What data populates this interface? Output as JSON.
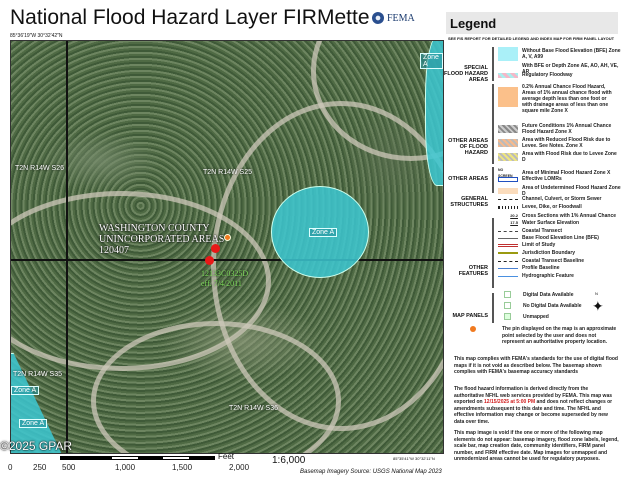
{
  "title": "National Flood Hazard Layer FIRMette",
  "agency": "FEMA",
  "coord_top_left": "85°36'19\"W 30°32'42\"N",
  "coord_bottom_right": "85°35'41\"W 30°32'11\"N",
  "map": {
    "zone_labels": [
      "Zone A",
      "Zone A",
      "Zone A",
      "Zone A"
    ],
    "township_labels": [
      "T2N R14W S26",
      "T2N R14W S25",
      "T2N R14W S35",
      "T2N R14W S36"
    ],
    "community": [
      "WASHINGTON COUNTY",
      "UNINCORPORATED AREAS",
      "120407"
    ],
    "panel": "12133C0325D",
    "panel_eff": "eff. 7/4/2011",
    "copyright": "©2025 GPAR"
  },
  "scale": {
    "unit": "Feet",
    "ticks": [
      "0",
      "250",
      "500",
      "1,000",
      "1,500",
      "2,000"
    ],
    "ratio": "1:6,000",
    "imagery_source": "Basemap Imagery Source: USGS National Map 2023"
  },
  "legend": {
    "title": "Legend",
    "note": "SEE FIS REPORT FOR DETAILED LEGEND AND INDEX MAP FOR FIRM PANEL LAYOUT",
    "sfha": {
      "label": "SPECIAL FLOOD HAZARD AREAS",
      "items": [
        "Without Base Flood Elevation (BFE) Zone A, V, A99",
        "With BFE or Depth Zone AE, AO, AH, VE, AR",
        "Regulatory Floodway"
      ]
    },
    "other_flood": {
      "label": "OTHER AREAS OF FLOOD HAZARD",
      "items": [
        "0.2% Annual Chance Flood Hazard, Areas of 1% annual chance flood with average depth less than one foot or with drainage areas of less than one square mile Zone X",
        "Future Conditions 1% Annual Chance Flood Hazard Zone X",
        "Area with Reduced Flood Risk due to Levee. See Notes. Zone X",
        "Area with Flood Risk due to Levee Zone D"
      ]
    },
    "other_areas": {
      "label": "OTHER AREAS",
      "no_screen": "NO SCREEN",
      "items": [
        "Area of Minimal Flood Hazard Zone X",
        "Effective LOMRs",
        "Area of Undetermined Flood Hazard Zone D"
      ]
    },
    "structures": {
      "label": "GENERAL STRUCTURES",
      "items": [
        "Channel, Culvert, or Storm Sewer",
        "Levee, Dike, or Floodwall"
      ]
    },
    "features": {
      "label": "OTHER FEATURES",
      "xs_values": [
        "20.2",
        "17.5"
      ],
      "items": [
        "Cross Sections with 1% Annual Chance",
        "Water Surface Elevation",
        "Coastal Transect",
        "Base Flood Elevation Line (BFE)",
        "Limit of Study",
        "Jurisdiction Boundary",
        "Coastal Transect Baseline",
        "Profile Baseline",
        "Hydrographic Feature"
      ]
    },
    "panels": {
      "label": "MAP PANELS",
      "items": [
        "Digital Data Available",
        "No Digital Data Available",
        "Unmapped"
      ]
    },
    "north": "N",
    "pin_note": "The pin displayed on the map is an approximate point selected by the user and does not represent an authoritative property location.",
    "para1": "This map complies with FEMA's standards for the use of digital flood maps if it is not void as described below. The basemap shown complies with FEMA's basemap accuracy standards",
    "para2_a": "The flood hazard information is derived directly from the authoritative NFHL web services provided by FEMA. This map was exported on ",
    "para2_date": "12/15/2025 at 5:00 PM",
    "para2_b": " and does not reflect changes or amendments subsequent to this date and time. The NFHL and effective information may change or become superseded by new data over time.",
    "para3": "This map image is void if the one or more of the following map elements do not appear: basemap imagery, flood zone labels, legend, scale bar, map creation date, community identifiers, FIRM panel number, and FIRM effective date. Map images for unmapped and unmodernized areas cannot be used for regulatory purposes."
  },
  "colors": {
    "zone_a": "#3cc8d2",
    "pin": "#f07a20",
    "date_red": "#d01c1c",
    "panel_green": "#7ddc5a"
  }
}
